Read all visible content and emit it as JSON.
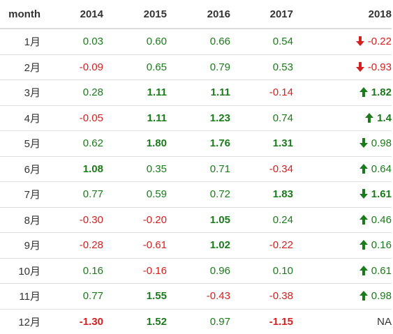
{
  "header": [
    "month",
    "2014",
    "2015",
    "2016",
    "2017",
    "2018"
  ],
  "colors": {
    "positive": "#1b7a1b",
    "negative": "#d42020",
    "neutral": "#333333"
  },
  "rows": [
    {
      "month": "1月",
      "cells": [
        {
          "text": "0.03",
          "tone": "pos",
          "bold": false
        },
        {
          "text": "0.60",
          "tone": "pos",
          "bold": false
        },
        {
          "text": "0.66",
          "tone": "pos",
          "bold": false
        },
        {
          "text": "0.54",
          "tone": "pos",
          "bold": false
        },
        {
          "text": "-0.22",
          "tone": "neg",
          "bold": false,
          "arrow": "down",
          "arrow_color": "neg"
        }
      ]
    },
    {
      "month": "2月",
      "cells": [
        {
          "text": "-0.09",
          "tone": "neg",
          "bold": false
        },
        {
          "text": "0.65",
          "tone": "pos",
          "bold": false
        },
        {
          "text": "0.79",
          "tone": "pos",
          "bold": false
        },
        {
          "text": "0.53",
          "tone": "pos",
          "bold": false
        },
        {
          "text": "-0.93",
          "tone": "neg",
          "bold": false,
          "arrow": "down",
          "arrow_color": "neg"
        }
      ]
    },
    {
      "month": "3月",
      "cells": [
        {
          "text": "0.28",
          "tone": "pos",
          "bold": false
        },
        {
          "text": "1.11",
          "tone": "pos",
          "bold": true
        },
        {
          "text": "1.11",
          "tone": "pos",
          "bold": true
        },
        {
          "text": "-0.14",
          "tone": "neg",
          "bold": false
        },
        {
          "text": "1.82",
          "tone": "pos",
          "bold": true,
          "arrow": "up",
          "arrow_color": "pos"
        }
      ]
    },
    {
      "month": "4月",
      "cells": [
        {
          "text": "-0.05",
          "tone": "neg",
          "bold": false
        },
        {
          "text": "1.11",
          "tone": "pos",
          "bold": true
        },
        {
          "text": "1.23",
          "tone": "pos",
          "bold": true
        },
        {
          "text": "0.74",
          "tone": "pos",
          "bold": false
        },
        {
          "text": "1.4",
          "tone": "pos",
          "bold": true,
          "arrow": "up",
          "arrow_color": "pos"
        }
      ]
    },
    {
      "month": "5月",
      "cells": [
        {
          "text": "0.62",
          "tone": "pos",
          "bold": false
        },
        {
          "text": "1.80",
          "tone": "pos",
          "bold": true
        },
        {
          "text": "1.76",
          "tone": "pos",
          "bold": true
        },
        {
          "text": "1.31",
          "tone": "pos",
          "bold": true
        },
        {
          "text": "0.98",
          "tone": "pos",
          "bold": false,
          "arrow": "down",
          "arrow_color": "pos"
        }
      ]
    },
    {
      "month": "6月",
      "cells": [
        {
          "text": "1.08",
          "tone": "pos",
          "bold": true
        },
        {
          "text": "0.35",
          "tone": "pos",
          "bold": false
        },
        {
          "text": "0.71",
          "tone": "pos",
          "bold": false
        },
        {
          "text": "-0.34",
          "tone": "neg",
          "bold": false
        },
        {
          "text": "0.64",
          "tone": "pos",
          "bold": false,
          "arrow": "up",
          "arrow_color": "pos"
        }
      ]
    },
    {
      "month": "7月",
      "cells": [
        {
          "text": "0.77",
          "tone": "pos",
          "bold": false
        },
        {
          "text": "0.59",
          "tone": "pos",
          "bold": false
        },
        {
          "text": "0.72",
          "tone": "pos",
          "bold": false
        },
        {
          "text": "1.83",
          "tone": "pos",
          "bold": true
        },
        {
          "text": "1.61",
          "tone": "pos",
          "bold": true,
          "arrow": "down",
          "arrow_color": "pos"
        }
      ]
    },
    {
      "month": "8月",
      "cells": [
        {
          "text": "-0.30",
          "tone": "neg",
          "bold": false
        },
        {
          "text": "-0.20",
          "tone": "neg",
          "bold": false
        },
        {
          "text": "1.05",
          "tone": "pos",
          "bold": true
        },
        {
          "text": "0.24",
          "tone": "pos",
          "bold": false
        },
        {
          "text": "0.46",
          "tone": "pos",
          "bold": false,
          "arrow": "up",
          "arrow_color": "pos"
        }
      ]
    },
    {
      "month": "9月",
      "cells": [
        {
          "text": "-0.28",
          "tone": "neg",
          "bold": false
        },
        {
          "text": "-0.61",
          "tone": "neg",
          "bold": false
        },
        {
          "text": "1.02",
          "tone": "pos",
          "bold": true
        },
        {
          "text": "-0.22",
          "tone": "neg",
          "bold": false
        },
        {
          "text": "0.16",
          "tone": "pos",
          "bold": false,
          "arrow": "up",
          "arrow_color": "pos"
        }
      ]
    },
    {
      "month": "10月",
      "cells": [
        {
          "text": "0.16",
          "tone": "pos",
          "bold": false
        },
        {
          "text": "-0.16",
          "tone": "neg",
          "bold": false
        },
        {
          "text": "0.96",
          "tone": "pos",
          "bold": false
        },
        {
          "text": "0.10",
          "tone": "pos",
          "bold": false
        },
        {
          "text": "0.61",
          "tone": "pos",
          "bold": false,
          "arrow": "up",
          "arrow_color": "pos"
        }
      ]
    },
    {
      "month": "11月",
      "cells": [
        {
          "text": "0.77",
          "tone": "pos",
          "bold": false
        },
        {
          "text": "1.55",
          "tone": "pos",
          "bold": true
        },
        {
          "text": "-0.43",
          "tone": "neg",
          "bold": false
        },
        {
          "text": "-0.38",
          "tone": "neg",
          "bold": false
        },
        {
          "text": "0.98",
          "tone": "pos",
          "bold": false,
          "arrow": "up",
          "arrow_color": "pos"
        }
      ]
    },
    {
      "month": "12月",
      "cells": [
        {
          "text": "-1.30",
          "tone": "neg",
          "bold": true
        },
        {
          "text": "1.52",
          "tone": "pos",
          "bold": true
        },
        {
          "text": "0.97",
          "tone": "pos",
          "bold": false
        },
        {
          "text": "-1.15",
          "tone": "neg",
          "bold": true
        },
        {
          "text": "NA",
          "tone": "na",
          "bold": false
        }
      ]
    }
  ]
}
